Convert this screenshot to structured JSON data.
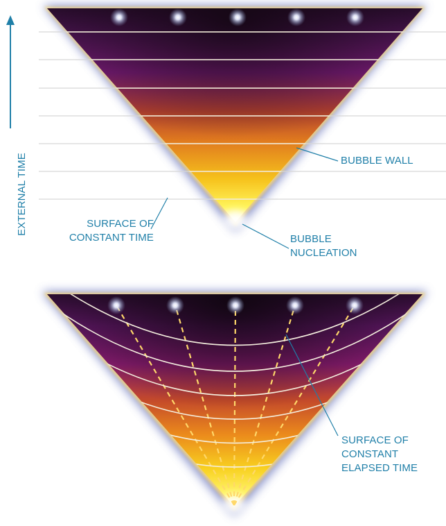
{
  "axis_label": "EXTERNAL TIME",
  "top_diagram": {
    "label_bubble_wall": "BUBBLE WALL",
    "label_surface_constant_time": [
      "SURFACE OF",
      "CONSTANT TIME"
    ],
    "label_bubble_nucleation": [
      "BUBBLE",
      "NUCLEATION"
    ]
  },
  "bottom_diagram": {
    "label_surface_constant_elapsed_time": [
      "SURFACE OF",
      "CONSTANT",
      "ELAPSED TIME"
    ]
  },
  "colors": {
    "label": "#1f7fa8",
    "bubble_dark": "#2a0d2e",
    "bubble_mid": "#7a1c78",
    "bubble_warm": "#e07a1e",
    "bubble_bright": "#ffe81a",
    "halo": "#5a68b8",
    "time_lines": "#d6d6d6"
  }
}
